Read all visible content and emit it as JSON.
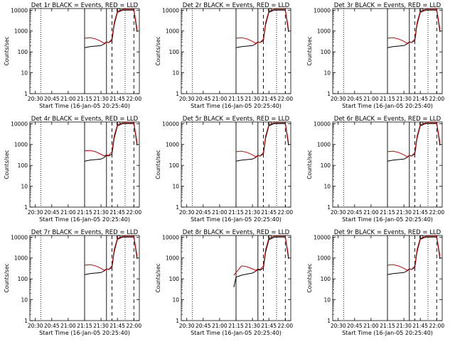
{
  "figure": {
    "xlabel": "Start Time (16-Jan-05 20:25:40)",
    "ylabel": "Counts/sec",
    "x_tick_labels": [
      "20:30",
      "20:45",
      "21:00",
      "21:15",
      "21:30",
      "21:45",
      "22:00"
    ],
    "y_tick_labels": [
      "1",
      "10",
      "100",
      "1000",
      "10000"
    ]
  },
  "chart_data": [
    {
      "type": "line",
      "title": "Det 1r BLACK = Events, RED = LLD",
      "xlabel": "Start Time (16-Jan-05 20:25:40)",
      "ylabel": "Counts/sec",
      "ylog": true,
      "ylim": [
        1,
        12000
      ],
      "xlim": [
        "20:25",
        "22:05"
      ],
      "series": [
        {
          "name": "Events",
          "color": "#000000",
          "x": [
            "21:15",
            "21:20",
            "21:25",
            "21:30",
            "21:33",
            "21:35",
            "21:37",
            "21:40",
            "21:42",
            "21:45",
            "21:50",
            "22:00",
            "22:03"
          ],
          "values": [
            160,
            180,
            190,
            200,
            240,
            300,
            280,
            350,
            2000,
            8000,
            10000,
            10000,
            900
          ]
        },
        {
          "name": "LLD",
          "color": "#cc0000",
          "x": [
            "21:15",
            "21:20",
            "21:25",
            "21:30",
            "21:33",
            "21:35",
            "21:37",
            "21:40",
            "21:42",
            "21:45",
            "21:50",
            "22:00",
            "22:03"
          ],
          "values": [
            450,
            480,
            420,
            320,
            260,
            300,
            280,
            420,
            2500,
            9000,
            11000,
            11000,
            1200
          ]
        }
      ]
    },
    {
      "type": "line",
      "title": "Det 2r BLACK = Events, RED = LLD",
      "xlabel": "Start Time (16-Jan-05 20:25:40)",
      "ylabel": "Counts/sec",
      "ylog": true,
      "ylim": [
        1,
        12000
      ],
      "xlim": [
        "20:25",
        "22:05"
      ],
      "series": [
        {
          "name": "Events",
          "color": "#000000",
          "x": [
            "21:15",
            "21:20",
            "21:25",
            "21:30",
            "21:33",
            "21:35",
            "21:37",
            "21:40",
            "21:42",
            "21:45",
            "21:50",
            "22:00",
            "22:03"
          ],
          "values": [
            160,
            180,
            190,
            200,
            240,
            300,
            280,
            350,
            2000,
            8000,
            10000,
            10000,
            900
          ]
        },
        {
          "name": "LLD",
          "color": "#cc0000",
          "x": [
            "21:15",
            "21:20",
            "21:25",
            "21:30",
            "21:33",
            "21:35",
            "21:37",
            "21:40",
            "21:42",
            "21:45",
            "21:50",
            "22:00",
            "22:03"
          ],
          "values": [
            450,
            480,
            420,
            320,
            260,
            300,
            280,
            420,
            2500,
            9000,
            11000,
            11000,
            1200
          ]
        }
      ]
    },
    {
      "type": "line",
      "title": "Det 3r BLACK = Events, RED = LLD",
      "xlabel": "Start Time (16-Jan-05 20:25:40)",
      "ylabel": "Counts/sec",
      "ylog": true,
      "ylim": [
        1,
        12000
      ],
      "xlim": [
        "20:25",
        "22:05"
      ],
      "series": [
        {
          "name": "Events",
          "color": "#000000",
          "x": [
            "21:15",
            "21:20",
            "21:25",
            "21:30",
            "21:33",
            "21:35",
            "21:37",
            "21:40",
            "21:42",
            "21:45",
            "21:50",
            "22:00",
            "22:03"
          ],
          "values": [
            160,
            180,
            190,
            200,
            240,
            300,
            280,
            350,
            2000,
            8000,
            10000,
            10000,
            900
          ]
        },
        {
          "name": "LLD",
          "color": "#cc0000",
          "x": [
            "21:15",
            "21:20",
            "21:25",
            "21:30",
            "21:33",
            "21:35",
            "21:37",
            "21:40",
            "21:42",
            "21:45",
            "21:50",
            "22:00",
            "22:03"
          ],
          "values": [
            450,
            480,
            420,
            320,
            260,
            300,
            280,
            420,
            2500,
            9000,
            11000,
            11000,
            1200
          ]
        }
      ]
    },
    {
      "type": "line",
      "title": "Det 4r BLACK = Events, RED = LLD",
      "xlabel": "Start Time (16-Jan-05 20:25:40)",
      "ylabel": "Counts/sec",
      "ylog": true,
      "ylim": [
        1,
        12000
      ],
      "xlim": [
        "20:25",
        "22:05"
      ],
      "series": [
        {
          "name": "Events",
          "color": "#000000",
          "x": [
            "21:15",
            "21:20",
            "21:25",
            "21:30",
            "21:33",
            "21:35",
            "21:37",
            "21:40",
            "21:42",
            "21:45",
            "21:50",
            "22:00",
            "22:03"
          ],
          "values": [
            160,
            180,
            190,
            200,
            240,
            300,
            280,
            350,
            2000,
            8000,
            10000,
            10000,
            900
          ]
        },
        {
          "name": "LLD",
          "color": "#cc0000",
          "x": [
            "21:15",
            "21:20",
            "21:25",
            "21:30",
            "21:33",
            "21:35",
            "21:37",
            "21:40",
            "21:42",
            "21:45",
            "21:50",
            "22:00",
            "22:03"
          ],
          "values": [
            500,
            520,
            450,
            340,
            280,
            320,
            300,
            450,
            2600,
            9000,
            11000,
            11000,
            1200
          ]
        }
      ]
    },
    {
      "type": "line",
      "title": "Det 5r BLACK = Events, RED = LLD",
      "xlabel": "Start Time (16-Jan-05 20:25:40)",
      "ylabel": "Counts/sec",
      "ylog": true,
      "ylim": [
        1,
        12000
      ],
      "xlim": [
        "20:25",
        "22:05"
      ],
      "series": [
        {
          "name": "Events",
          "color": "#000000",
          "x": [
            "21:15",
            "21:20",
            "21:25",
            "21:30",
            "21:33",
            "21:35",
            "21:37",
            "21:40",
            "21:42",
            "21:45",
            "21:50",
            "22:00",
            "22:03"
          ],
          "values": [
            160,
            180,
            190,
            200,
            240,
            300,
            280,
            350,
            2000,
            8000,
            10000,
            10000,
            900
          ]
        },
        {
          "name": "LLD",
          "color": "#cc0000",
          "x": [
            "21:15",
            "21:20",
            "21:25",
            "21:30",
            "21:33",
            "21:35",
            "21:37",
            "21:40",
            "21:42",
            "21:45",
            "21:50",
            "22:00",
            "22:03"
          ],
          "values": [
            450,
            480,
            420,
            320,
            260,
            300,
            280,
            420,
            2500,
            9000,
            11000,
            11000,
            1200
          ]
        }
      ]
    },
    {
      "type": "line",
      "title": "Det 6r BLACK = Events, RED = LLD",
      "xlabel": "Start Time (16-Jan-05 20:25:40)",
      "ylabel": "Counts/sec",
      "ylog": true,
      "ylim": [
        1,
        12000
      ],
      "xlim": [
        "20:25",
        "22:05"
      ],
      "series": [
        {
          "name": "Events",
          "color": "#000000",
          "x": [
            "21:15",
            "21:20",
            "21:25",
            "21:30",
            "21:33",
            "21:35",
            "21:37",
            "21:40",
            "21:42",
            "21:45",
            "21:50",
            "22:00",
            "22:03"
          ],
          "values": [
            160,
            180,
            190,
            200,
            240,
            300,
            280,
            350,
            2000,
            8000,
            10000,
            10000,
            900
          ]
        },
        {
          "name": "LLD",
          "color": "#cc0000",
          "x": [
            "21:15",
            "21:20",
            "21:25",
            "21:30",
            "21:33",
            "21:35",
            "21:37",
            "21:40",
            "21:42",
            "21:45",
            "21:50",
            "22:00",
            "22:03"
          ],
          "values": [
            450,
            480,
            420,
            320,
            260,
            300,
            280,
            420,
            2500,
            9000,
            11000,
            11000,
            1200
          ]
        }
      ]
    },
    {
      "type": "line",
      "title": "Det 7r BLACK = Events, RED = LLD",
      "xlabel": "Start Time (16-Jan-05 20:25:40)",
      "ylabel": "Counts/sec",
      "ylog": true,
      "ylim": [
        1,
        12000
      ],
      "xlim": [
        "20:25",
        "22:05"
      ],
      "series": [
        {
          "name": "Events",
          "color": "#000000",
          "x": [
            "21:15",
            "21:20",
            "21:25",
            "21:30",
            "21:33",
            "21:35",
            "21:37",
            "21:40",
            "21:42",
            "21:45",
            "21:50",
            "22:00",
            "22:03"
          ],
          "values": [
            160,
            180,
            190,
            200,
            240,
            300,
            280,
            350,
            2000,
            8000,
            10000,
            10000,
            900
          ]
        },
        {
          "name": "LLD",
          "color": "#cc0000",
          "x": [
            "21:15",
            "21:20",
            "21:25",
            "21:30",
            "21:33",
            "21:35",
            "21:37",
            "21:40",
            "21:42",
            "21:45",
            "21:50",
            "22:00",
            "22:03"
          ],
          "values": [
            450,
            480,
            420,
            320,
            260,
            300,
            280,
            420,
            2500,
            9000,
            11000,
            11000,
            1200
          ]
        }
      ]
    },
    {
      "type": "line",
      "title": "Det 8r BLACK = Events, RED = LLD",
      "xlabel": "Start Time (16-Jan-05 20:25:40)",
      "ylabel": "Counts/sec",
      "ylog": true,
      "ylim": [
        1,
        12000
      ],
      "xlim": [
        "20:25",
        "22:05"
      ],
      "series": [
        {
          "name": "Events",
          "color": "#000000",
          "x": [
            "21:13",
            "21:15",
            "21:20",
            "21:25",
            "21:30",
            "21:33",
            "21:35",
            "21:37",
            "21:40",
            "21:42",
            "21:45",
            "21:50",
            "22:00",
            "22:03"
          ],
          "values": [
            40,
            120,
            150,
            170,
            190,
            230,
            280,
            260,
            330,
            1900,
            7500,
            10000,
            10000,
            900
          ]
        },
        {
          "name": "LLD",
          "color": "#cc0000",
          "x": [
            "21:13",
            "21:15",
            "21:20",
            "21:25",
            "21:30",
            "21:33",
            "21:35",
            "21:37",
            "21:40",
            "21:42",
            "21:45",
            "21:50",
            "22:00",
            "22:03"
          ],
          "values": [
            150,
            200,
            420,
            380,
            300,
            260,
            300,
            280,
            420,
            2500,
            9000,
            11000,
            11000,
            1200
          ]
        }
      ]
    },
    {
      "type": "line",
      "title": "Det 9r BLACK = Events, RED = LLD",
      "xlabel": "Start Time (16-Jan-05 20:25:40)",
      "ylabel": "Counts/sec",
      "ylog": true,
      "ylim": [
        1,
        12000
      ],
      "xlim": [
        "20:25",
        "22:05"
      ],
      "series": [
        {
          "name": "Events",
          "color": "#000000",
          "x": [
            "21:15",
            "21:20",
            "21:25",
            "21:30",
            "21:33",
            "21:35",
            "21:37",
            "21:40",
            "21:42",
            "21:45",
            "21:50",
            "22:00",
            "22:03"
          ],
          "values": [
            160,
            180,
            190,
            200,
            240,
            300,
            280,
            350,
            2000,
            8000,
            10000,
            10000,
            900
          ]
        },
        {
          "name": "LLD",
          "color": "#cc0000",
          "x": [
            "21:15",
            "21:20",
            "21:25",
            "21:30",
            "21:33",
            "21:35",
            "21:37",
            "21:40",
            "21:42",
            "21:45",
            "21:50",
            "22:00",
            "22:03"
          ],
          "values": [
            450,
            480,
            420,
            320,
            260,
            300,
            280,
            420,
            2500,
            9000,
            11000,
            11000,
            1200
          ]
        }
      ]
    }
  ]
}
